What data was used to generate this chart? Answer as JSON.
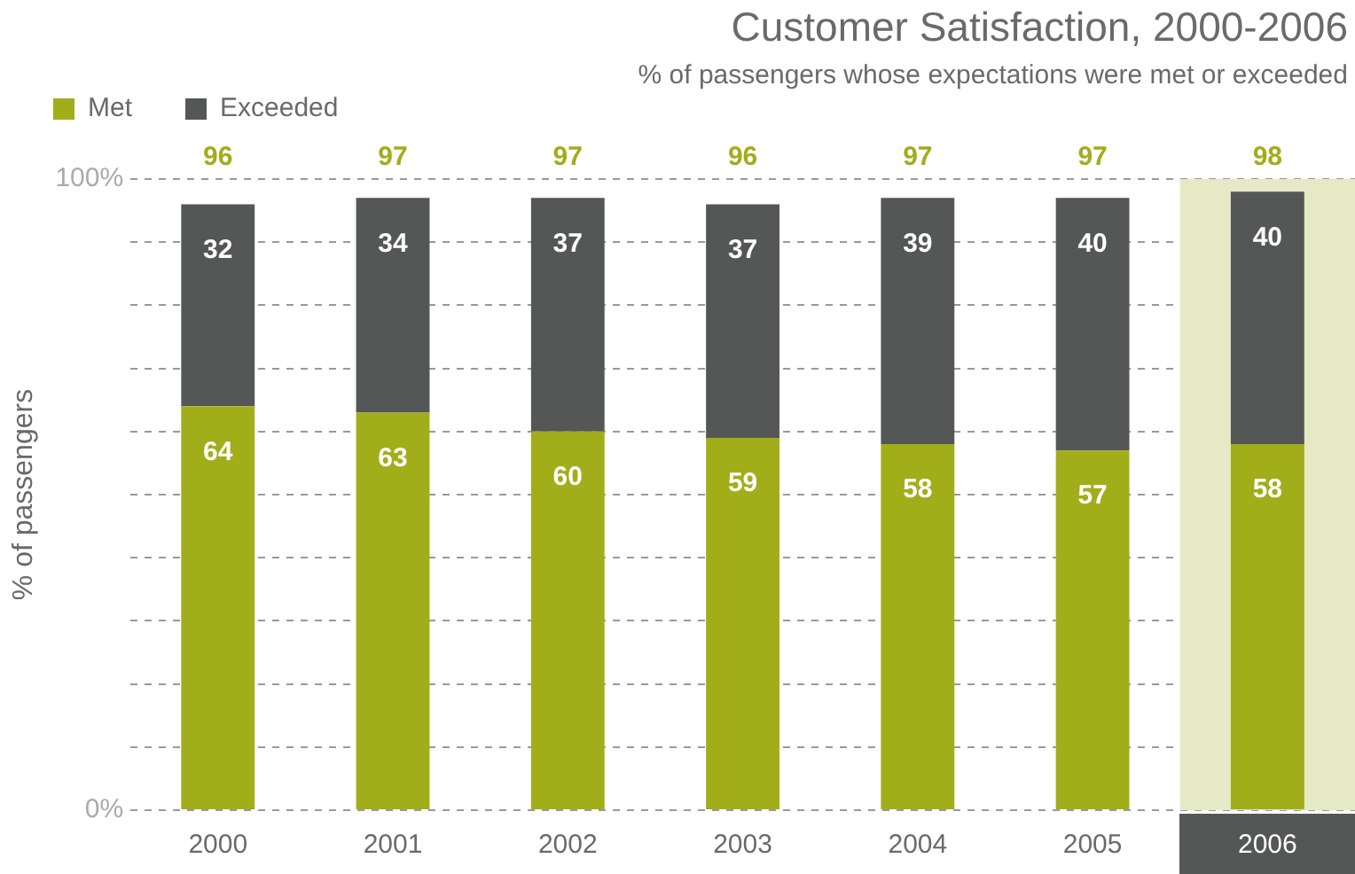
{
  "chart_data": {
    "type": "bar",
    "title": "Customer Satisfaction, 2000-2006",
    "subtitle": "% of passengers whose expectations were met or exceeded",
    "ylabel": "% of passengers",
    "categories": [
      "2000",
      "2001",
      "2002",
      "2003",
      "2004",
      "2005",
      "2006"
    ],
    "series": [
      {
        "name": "Met",
        "color": "#a2ad1a",
        "values": [
          64,
          63,
          60,
          59,
          58,
          57,
          58
        ]
      },
      {
        "name": "Exceeded",
        "color": "#555656",
        "values": [
          32,
          34,
          37,
          37,
          39,
          40,
          40
        ]
      }
    ],
    "stacked": true,
    "ylim": [
      0,
      100
    ],
    "yticks": [
      {
        "value": 0,
        "label": "0%"
      },
      {
        "value": 10,
        "label": null
      },
      {
        "value": 20,
        "label": null
      },
      {
        "value": 30,
        "label": null
      },
      {
        "value": 40,
        "label": null
      },
      {
        "value": 50,
        "label": null
      },
      {
        "value": 60,
        "label": null
      },
      {
        "value": 70,
        "label": null
      },
      {
        "value": 80,
        "label": null
      },
      {
        "value": 90,
        "label": null
      },
      {
        "value": 100,
        "label": "100%"
      }
    ],
    "grid": "y",
    "legend": "top left",
    "data_labels": true,
    "totals": [
      "96",
      "97",
      "97",
      "96",
      "97",
      "97",
      "98"
    ],
    "bands": [
      {
        "axis": "x",
        "from": "2006",
        "to": "2006",
        "color": "#e6e9c6"
      }
    ]
  }
}
